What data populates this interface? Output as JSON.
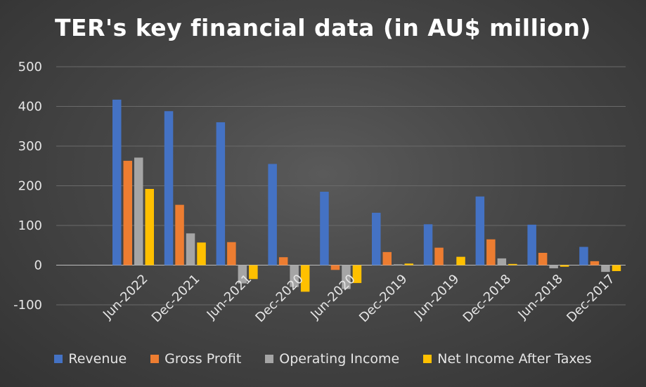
{
  "chart_data": {
    "type": "bar",
    "title": "TER's key financial data (in AU$ million)",
    "xlabel": "",
    "ylabel": "",
    "ylim": [
      -100,
      500
    ],
    "yticks": [
      -100,
      0,
      100,
      200,
      300,
      400,
      500
    ],
    "grid": true,
    "legend_position": "bottom",
    "categories": [
      "Jun-2022",
      "Dec-2021",
      "Jun-2021",
      "Dec-2020",
      "Jun-2020",
      "Dec-2019",
      "Jun-2019",
      "Dec-2018",
      "Jun-2018",
      "Dec-2017"
    ],
    "series": [
      {
        "name": "Revenue",
        "color": "#4472c4",
        "values": [
          417,
          388,
          360,
          255,
          185,
          132,
          103,
          173,
          102,
          46
        ]
      },
      {
        "name": "Gross Profit",
        "color": "#ed7d31",
        "values": [
          263,
          152,
          58,
          20,
          -12,
          33,
          44,
          65,
          31,
          10
        ]
      },
      {
        "name": "Operating Income",
        "color": "#a5a5a5",
        "values": [
          271,
          80,
          -46,
          -55,
          -60,
          2,
          1,
          17,
          -8,
          -17
        ]
      },
      {
        "name": "Net Income After Taxes",
        "color": "#ffc000",
        "values": [
          192,
          57,
          -35,
          -67,
          -45,
          4,
          21,
          3,
          -4,
          -15
        ]
      }
    ]
  }
}
